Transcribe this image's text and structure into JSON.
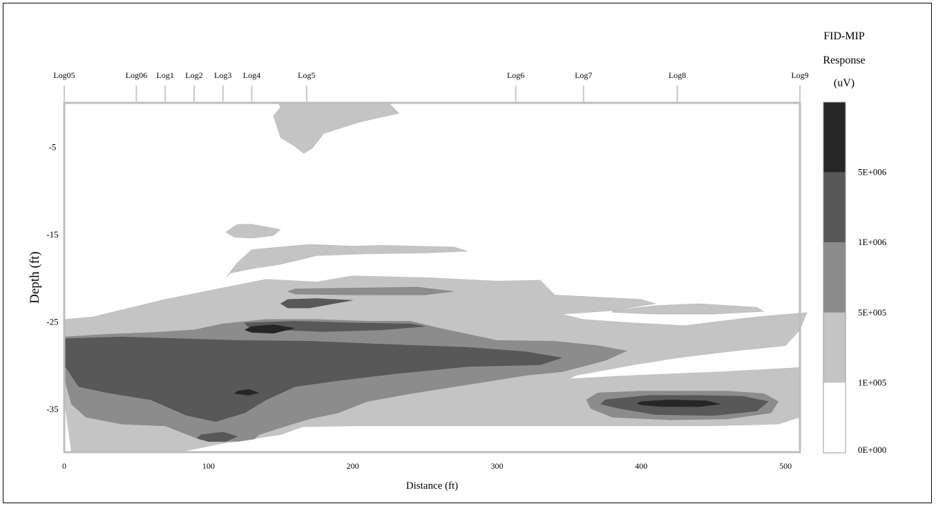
{
  "chart_data": {
    "type": "heatmap",
    "title": "",
    "xlabel": "Distance (ft)",
    "ylabel": "Depth (ft)",
    "xlim": [
      0,
      510
    ],
    "ylim": [
      -40,
      0
    ],
    "x_ticks": [
      0,
      100,
      200,
      300,
      400,
      500
    ],
    "y_ticks": [
      -5,
      -15,
      -25,
      -35
    ],
    "logs": [
      {
        "label": "Log05",
        "x": 0
      },
      {
        "label": "Log06",
        "x": 50
      },
      {
        "label": "Log1",
        "x": 70
      },
      {
        "label": "Log2",
        "x": 90
      },
      {
        "label": "Log3",
        "x": 110
      },
      {
        "label": "Log4",
        "x": 130
      },
      {
        "label": "Log5",
        "x": 168
      },
      {
        "label": "Log6",
        "x": 313
      },
      {
        "label": "Log7",
        "x": 360
      },
      {
        "label": "Log8",
        "x": 425
      },
      {
        "label": "Log9",
        "x": 510
      }
    ],
    "colorbar": {
      "title_lines": [
        "FID-MIP",
        "Response",
        "(uV)"
      ],
      "levels": [
        "0E+000",
        "1E+005",
        "5E+005",
        "1E+006",
        "5E+006"
      ],
      "colors": [
        "#ffffff",
        "#c4c4c4",
        "#8c8c8c",
        "#585858",
        "#262626"
      ]
    },
    "contours": [
      {
        "level": 1,
        "x": [
          148,
          165,
          180,
          225,
          232,
          205,
          180,
          172,
          166,
          160,
          150,
          148,
          145,
          150
        ],
        "y": [
          0,
          0,
          0,
          0,
          -1.2,
          -2.2,
          -3.5,
          -5.2,
          -5.8,
          -5.0,
          -4.0,
          -3.0,
          -1.5,
          -0.5
        ]
      },
      {
        "level": 1,
        "x": [
          120,
          130,
          140,
          150,
          145,
          130,
          118,
          112
        ],
        "y": [
          -13.9,
          -13.9,
          -14.2,
          -14.5,
          -15.2,
          -15.5,
          -15.4,
          -14.8
        ]
      },
      {
        "level": 1,
        "x": [
          130,
          150,
          170,
          200,
          220,
          270,
          280,
          250,
          210,
          175,
          150,
          130,
          115,
          112,
          120
        ],
        "y": [
          -16.8,
          -16.5,
          -16.2,
          -16.4,
          -16.3,
          -16.5,
          -17.0,
          -17.2,
          -17.3,
          -17.5,
          -18.5,
          -19.0,
          -19.5,
          -20.0,
          -18.3
        ]
      },
      {
        "level": 1,
        "x": [
          0,
          20,
          45,
          70,
          100,
          140,
          175,
          200,
          250,
          300,
          330,
          340,
          400,
          410,
          380,
          345,
          360,
          395,
          430,
          480,
          515,
          510,
          500,
          460,
          425,
          395,
          355,
          350,
          395,
          455,
          510,
          510,
          495,
          450,
          410,
          360,
          330,
          300,
          250,
          200,
          165,
          150,
          110,
          80,
          45,
          20,
          5,
          0
        ],
        "y": [
          -24.8,
          -24.5,
          -23.5,
          -22.5,
          -21.5,
          -20.2,
          -20.5,
          -19.8,
          -20.0,
          -20.4,
          -20.3,
          -22.0,
          -22.5,
          -23.0,
          -23.8,
          -24.2,
          -24.8,
          -25.2,
          -25.5,
          -24.5,
          -24.0,
          -26.0,
          -27.8,
          -28.5,
          -29.2,
          -30.0,
          -31.2,
          -31.6,
          -31.2,
          -30.8,
          -30.3,
          -36.0,
          -36.8,
          -37.0,
          -37.0,
          -37.0,
          -37.0,
          -37.0,
          -37.0,
          -37.0,
          -37.1,
          -38.0,
          -39.0,
          -40.0,
          -40.0,
          -40.0,
          -40.0,
          -34.0
        ]
      },
      {
        "level": 1,
        "x": [
          380,
          410,
          440,
          480,
          485,
          450,
          410,
          380
        ],
        "y": [
          -23.8,
          -23.2,
          -23.0,
          -23.4,
          -23.9,
          -24.2,
          -24.2,
          -24.0
        ]
      },
      {
        "level": 2,
        "x": [
          0,
          30,
          60,
          90,
          110,
          140,
          175,
          210,
          240,
          260,
          300,
          340,
          370,
          390,
          375,
          345,
          320,
          290,
          240,
          210,
          190,
          170,
          150,
          135,
          132,
          120,
          95,
          70,
          40,
          15,
          5,
          0
        ],
        "y": [
          -26.8,
          -26.5,
          -26.3,
          -26.0,
          -25.3,
          -24.8,
          -24.8,
          -25.0,
          -25.0,
          -25.8,
          -27.2,
          -27.3,
          -27.8,
          -28.4,
          -29.5,
          -30.8,
          -31.2,
          -32.0,
          -33.3,
          -34.2,
          -35.5,
          -36.2,
          -37.2,
          -38.0,
          -38.5,
          -38.8,
          -38.6,
          -37.0,
          -36.8,
          -36.0,
          -34.5,
          -31.5
        ]
      },
      {
        "level": 2,
        "x": [
          160,
          200,
          245,
          270,
          250,
          200,
          160,
          155
        ],
        "y": [
          -21.3,
          -21.2,
          -21.1,
          -21.6,
          -22.0,
          -22.0,
          -21.9,
          -21.6
        ]
      },
      {
        "level": 2,
        "x": [
          370,
          400,
          430,
          460,
          485,
          495,
          490,
          460,
          420,
          380,
          365,
          362
        ],
        "y": [
          -33.2,
          -33.0,
          -33.0,
          -33.0,
          -33.3,
          -34.2,
          -35.5,
          -36.2,
          -36.3,
          -36.0,
          -35.0,
          -34.0
        ]
      },
      {
        "level": 3,
        "x": [
          0,
          40,
          80,
          120,
          170,
          230,
          280,
          320,
          345,
          330,
          280,
          230,
          190,
          160,
          140,
          125,
          105,
          85,
          60,
          30,
          10,
          0
        ],
        "y": [
          -27.0,
          -26.8,
          -27.0,
          -27.2,
          -27.3,
          -27.7,
          -28.0,
          -28.5,
          -29.2,
          -30.0,
          -30.2,
          -31.0,
          -31.8,
          -32.5,
          -34.0,
          -35.5,
          -36.5,
          -35.8,
          -34.0,
          -33.2,
          -32.5,
          -30.0
        ]
      },
      {
        "level": 3,
        "x": [
          155,
          175,
          200,
          170,
          155,
          150
        ],
        "y": [
          -22.5,
          -22.4,
          -22.6,
          -23.5,
          -23.5,
          -23.0
        ]
      },
      {
        "level": 3,
        "x": [
          125,
          160,
          200,
          240,
          250,
          220,
          180,
          150,
          128
        ],
        "y": [
          -25.2,
          -25.0,
          -25.2,
          -25.3,
          -25.6,
          -26.0,
          -26.2,
          -26.0,
          -25.7
        ]
      },
      {
        "level": 3,
        "x": [
          375,
          405,
          440,
          470,
          488,
          480,
          450,
          410,
          385,
          372
        ],
        "y": [
          -34.0,
          -33.5,
          -33.5,
          -33.6,
          -34.2,
          -35.3,
          -35.8,
          -35.7,
          -35.0,
          -34.5
        ]
      },
      {
        "level": 3,
        "x": [
          95,
          110,
          120,
          112,
          100,
          92
        ],
        "y": [
          -38.0,
          -37.7,
          -38.2,
          -38.8,
          -38.8,
          -38.4
        ]
      },
      {
        "level": 4,
        "x": [
          130,
          145,
          160,
          145,
          130,
          125
        ],
        "y": [
          -25.6,
          -25.4,
          -25.8,
          -26.4,
          -26.3,
          -26.0
        ]
      },
      {
        "level": 4,
        "x": [
          400,
          420,
          445,
          455,
          440,
          415,
          400,
          397
        ],
        "y": [
          -34.2,
          -34.0,
          -34.1,
          -34.5,
          -34.8,
          -34.8,
          -34.6,
          -34.4
        ]
      },
      {
        "level": 4,
        "x": [
          120,
          128,
          135,
          128,
          118
        ],
        "y": [
          -33.0,
          -32.8,
          -33.2,
          -33.5,
          -33.3
        ]
      }
    ]
  }
}
